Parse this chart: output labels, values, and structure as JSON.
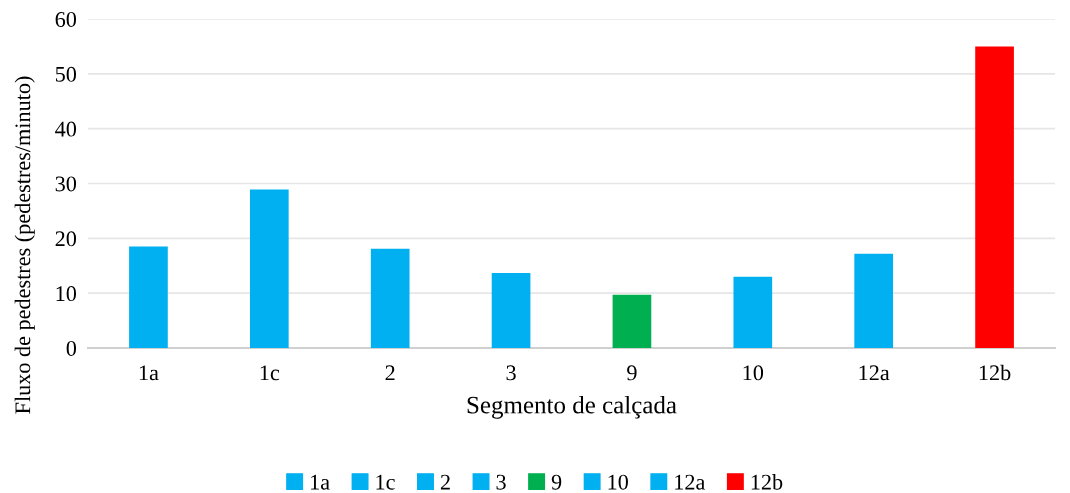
{
  "chart_data": {
    "type": "bar",
    "xlabel": "Segmento de calçada",
    "ylabel": "Fluxo de pedestres (pedestres/minuto)",
    "categories": [
      "1a",
      "1c",
      "2",
      "3",
      "9",
      "10",
      "12a",
      "12b"
    ],
    "series": [
      {
        "name": "1a",
        "color": "#00b0f0",
        "values": [
          18.5,
          null,
          null,
          null,
          null,
          null,
          null,
          null
        ]
      },
      {
        "name": "1c",
        "color": "#00b0f0",
        "values": [
          null,
          28.9,
          null,
          null,
          null,
          null,
          null,
          null
        ]
      },
      {
        "name": "2",
        "color": "#00b0f0",
        "values": [
          null,
          null,
          18.1,
          null,
          null,
          null,
          null,
          null
        ]
      },
      {
        "name": "3",
        "color": "#00b0f0",
        "values": [
          null,
          null,
          null,
          13.7,
          null,
          null,
          null,
          null
        ]
      },
      {
        "name": "9",
        "color": "#00b050",
        "values": [
          null,
          null,
          null,
          null,
          9.7,
          null,
          null,
          null
        ]
      },
      {
        "name": "10",
        "color": "#00b0f0",
        "values": [
          null,
          null,
          null,
          null,
          null,
          13.0,
          null,
          null
        ]
      },
      {
        "name": "12a",
        "color": "#00b0f0",
        "values": [
          null,
          null,
          null,
          null,
          null,
          null,
          17.2,
          null
        ]
      },
      {
        "name": "12b",
        "color": "#ff0000",
        "values": [
          null,
          null,
          null,
          null,
          null,
          null,
          null,
          55.0
        ]
      }
    ],
    "ylim": [
      0,
      60
    ],
    "yticks": [
      0,
      10,
      20,
      30,
      40,
      50,
      60
    ],
    "grid": "y",
    "legend": "bottom"
  }
}
